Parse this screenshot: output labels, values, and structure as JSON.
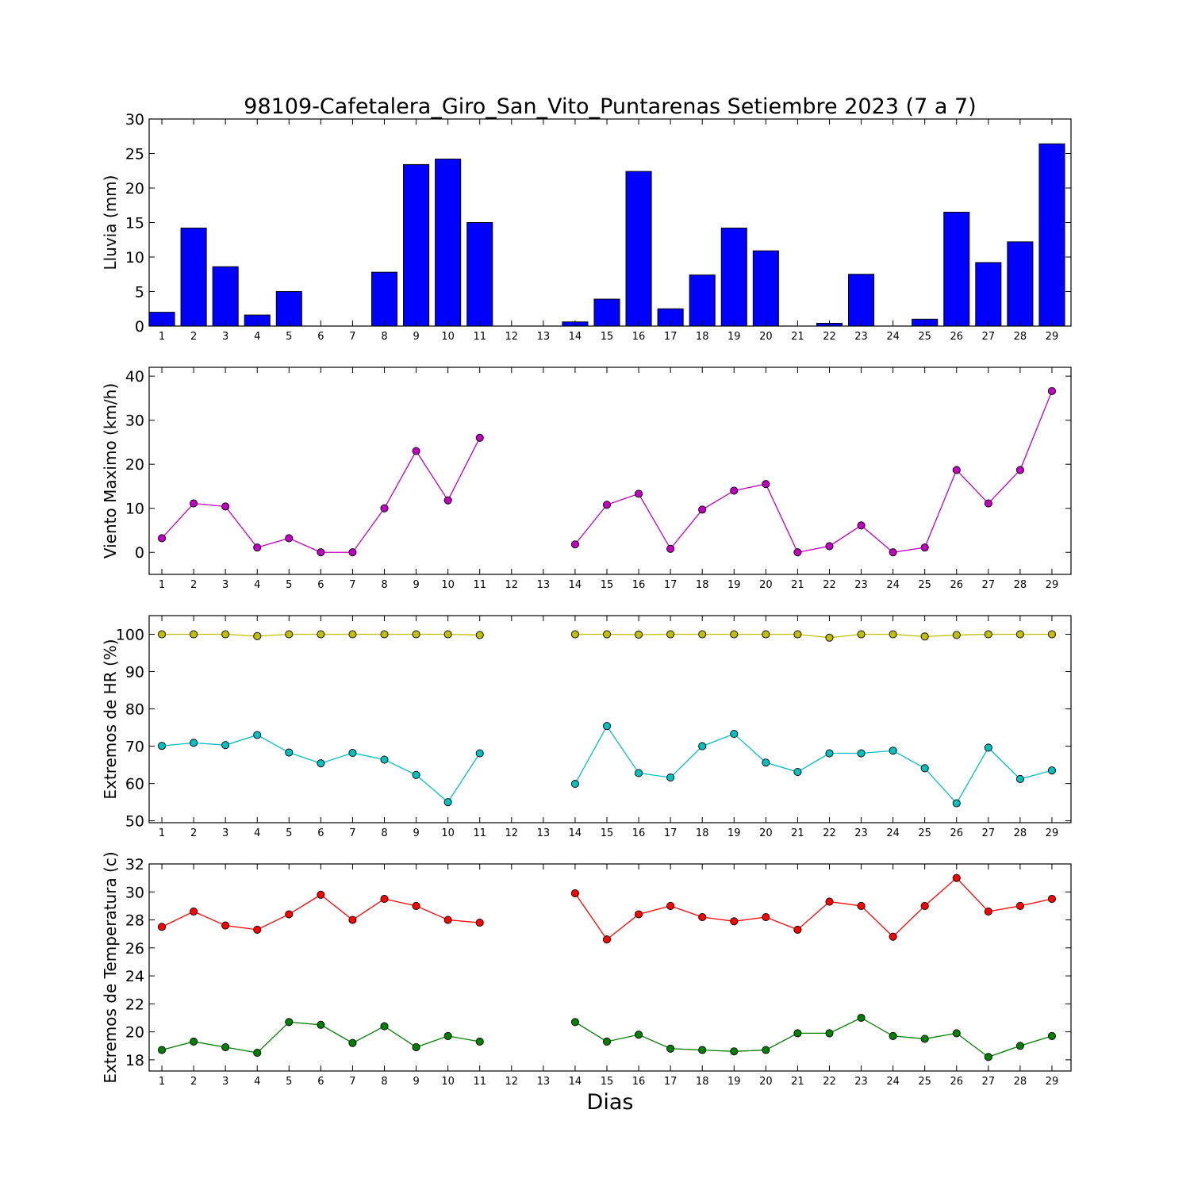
{
  "title": "98109-Cafetalera_Giro_San_Vito_Puntarenas Setiembre 2023  (7 a 7)",
  "xlabel": "Dias",
  "chart_data": [
    {
      "type": "bar",
      "ylabel": "Lluvia (mm)",
      "ylim": [
        0,
        30
      ],
      "yticks": [
        0,
        5,
        10,
        15,
        20,
        25,
        30
      ],
      "categories": [
        "1",
        "2",
        "3",
        "4",
        "5",
        "6",
        "7",
        "8",
        "9",
        "10",
        "11",
        "12",
        "13",
        "14",
        "15",
        "16",
        "17",
        "18",
        "19",
        "20",
        "21",
        "22",
        "23",
        "24",
        "25",
        "26",
        "27",
        "28",
        "29"
      ],
      "series": [
        {
          "color": "#0000ff",
          "values": [
            2.0,
            14.2,
            8.6,
            1.6,
            5.0,
            0,
            0,
            7.8,
            23.4,
            24.2,
            15.0,
            null,
            null,
            0.6,
            3.9,
            22.4,
            2.5,
            7.4,
            14.2,
            10.9,
            0,
            0.4,
            7.5,
            0,
            1.0,
            16.5,
            9.2,
            12.2,
            26.4
          ]
        }
      ]
    },
    {
      "type": "line",
      "ylabel": "Viento Maximo (km/h)",
      "ylim": [
        -5,
        42
      ],
      "yticks": [
        0,
        10,
        20,
        30,
        40
      ],
      "categories": [
        "1",
        "2",
        "3",
        "4",
        "5",
        "6",
        "7",
        "8",
        "9",
        "10",
        "11",
        "12",
        "13",
        "14",
        "15",
        "16",
        "17",
        "18",
        "19",
        "20",
        "21",
        "22",
        "23",
        "24",
        "25",
        "26",
        "27",
        "28",
        "29"
      ],
      "series": [
        {
          "color": "#bf00bf",
          "values": [
            3.2,
            11.1,
            10.4,
            1.1,
            3.2,
            0,
            0,
            10.0,
            23.0,
            11.8,
            26.0,
            null,
            null,
            1.8,
            10.8,
            13.3,
            0.8,
            9.7,
            14.0,
            15.5,
            0,
            1.4,
            6.1,
            0,
            1.1,
            18.7,
            11.1,
            18.7,
            36.6
          ]
        }
      ]
    },
    {
      "type": "line",
      "ylabel": "Extremos de HR (%)",
      "ylim": [
        49.5,
        105
      ],
      "yticks": [
        50,
        60,
        70,
        80,
        90,
        100
      ],
      "categories": [
        "1",
        "2",
        "3",
        "4",
        "5",
        "6",
        "7",
        "8",
        "9",
        "10",
        "11",
        "12",
        "13",
        "14",
        "15",
        "16",
        "17",
        "18",
        "19",
        "20",
        "21",
        "22",
        "23",
        "24",
        "25",
        "26",
        "27",
        "28",
        "29"
      ],
      "series": [
        {
          "color": "#bfbf00",
          "values": [
            100,
            100,
            100,
            99.5,
            100,
            100,
            100,
            100,
            100,
            100,
            99.8,
            null,
            null,
            100,
            100,
            99.9,
            100,
            100,
            100,
            100,
            100,
            99.1,
            100,
            100,
            99.4,
            99.8,
            100,
            100,
            100
          ]
        },
        {
          "color": "#00bfbf",
          "values": [
            70.1,
            70.9,
            70.3,
            73.0,
            68.3,
            65.4,
            68.2,
            66.4,
            62.3,
            55.0,
            68.1,
            null,
            null,
            59.9,
            75.4,
            62.8,
            61.6,
            70.0,
            73.3,
            65.6,
            63.1,
            68.1,
            68.1,
            68.8,
            64.1,
            54.7,
            69.6,
            61.2,
            63.5
          ]
        }
      ]
    },
    {
      "type": "line",
      "ylabel": "Extremos de Temperatura (c)",
      "ylim": [
        17.2,
        32
      ],
      "yticks": [
        18,
        20,
        22,
        24,
        26,
        28,
        30,
        32
      ],
      "categories": [
        "1",
        "2",
        "3",
        "4",
        "5",
        "6",
        "7",
        "8",
        "9",
        "10",
        "11",
        "12",
        "13",
        "14",
        "15",
        "16",
        "17",
        "18",
        "19",
        "20",
        "21",
        "22",
        "23",
        "24",
        "25",
        "26",
        "27",
        "28",
        "29"
      ],
      "series": [
        {
          "color": "#ff0000",
          "values": [
            27.5,
            28.6,
            27.6,
            27.3,
            28.4,
            29.8,
            28.0,
            29.5,
            29.0,
            28.0,
            27.8,
            null,
            null,
            29.9,
            26.6,
            28.4,
            29.0,
            28.2,
            27.9,
            28.2,
            27.3,
            29.3,
            29.0,
            26.8,
            29.0,
            31.0,
            28.6,
            29.0,
            29.5
          ]
        },
        {
          "color": "#008000",
          "values": [
            18.7,
            19.3,
            18.9,
            18.5,
            20.7,
            20.5,
            19.2,
            20.4,
            18.9,
            19.7,
            19.3,
            null,
            null,
            20.7,
            19.3,
            19.8,
            18.8,
            18.7,
            18.6,
            18.7,
            19.9,
            19.9,
            21.0,
            19.7,
            19.5,
            19.9,
            18.2,
            19.0,
            19.7
          ]
        }
      ]
    }
  ]
}
